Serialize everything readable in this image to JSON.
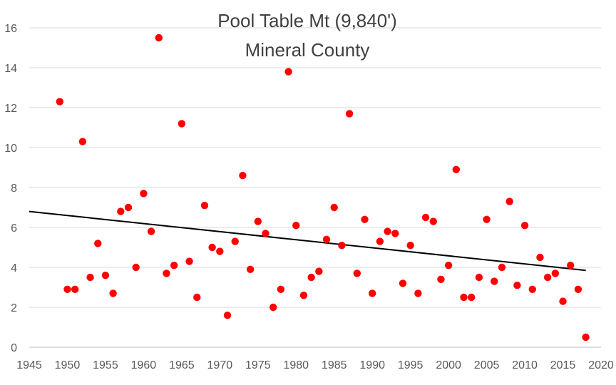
{
  "chart_data": {
    "type": "scatter",
    "title": "Pool Table Mt (9,840')",
    "subtitle": "Mineral County",
    "xlabel": "",
    "ylabel": "",
    "xlim": [
      1945,
      2020
    ],
    "ylim": [
      0,
      16
    ],
    "x_ticks": [
      1945,
      1950,
      1955,
      1960,
      1965,
      1970,
      1975,
      1980,
      1985,
      1990,
      1995,
      2000,
      2005,
      2010,
      2015,
      2020
    ],
    "y_ticks": [
      0,
      2,
      4,
      6,
      8,
      10,
      12,
      14,
      16
    ],
    "grid": "horizontal",
    "legend": "none",
    "marker_color": "#ff0000",
    "trendline_color": "#000000",
    "trendline": {
      "type": "linear",
      "x": [
        1945,
        2018
      ],
      "y": [
        6.8,
        3.85
      ]
    },
    "series": [
      {
        "x": [
          1949,
          1950,
          1951,
          1952,
          1953,
          1954,
          1955,
          1956,
          1957,
          1958,
          1959,
          1960,
          1961,
          1962,
          1963,
          1964,
          1965,
          1966,
          1967,
          1968,
          1969,
          1970,
          1971,
          1972,
          1973,
          1974,
          1975,
          1976,
          1977,
          1978,
          1979,
          1980,
          1981,
          1982,
          1983,
          1984,
          1985,
          1986,
          1987,
          1988,
          1989,
          1990,
          1991,
          1992,
          1993,
          1994,
          1995,
          1996,
          1997,
          1998,
          1999,
          2000,
          2001,
          2002,
          2003,
          2004,
          2005,
          2006,
          2007,
          2008,
          2009,
          2010,
          2011,
          2012,
          2013,
          2014,
          2015,
          2016,
          2017,
          2018
        ],
        "values": [
          12.3,
          2.9,
          2.9,
          10.3,
          3.5,
          5.2,
          3.6,
          2.7,
          6.8,
          7.0,
          4.0,
          7.7,
          5.8,
          15.5,
          3.7,
          4.1,
          11.2,
          4.3,
          2.5,
          7.1,
          5.0,
          4.8,
          1.6,
          5.3,
          8.6,
          3.9,
          6.3,
          5.7,
          2.0,
          2.9,
          13.8,
          6.1,
          2.6,
          3.5,
          3.8,
          5.4,
          7.0,
          5.1,
          11.7,
          3.7,
          6.4,
          2.7,
          5.3,
          5.8,
          5.7,
          3.2,
          5.1,
          2.7,
          6.5,
          6.3,
          3.4,
          4.1,
          8.9,
          2.5,
          2.5,
          3.5,
          6.4,
          3.3,
          4.0,
          7.3,
          3.1,
          6.1,
          2.9,
          4.5,
          3.5,
          3.7,
          2.3,
          4.1,
          2.9,
          0.5
        ]
      }
    ]
  }
}
